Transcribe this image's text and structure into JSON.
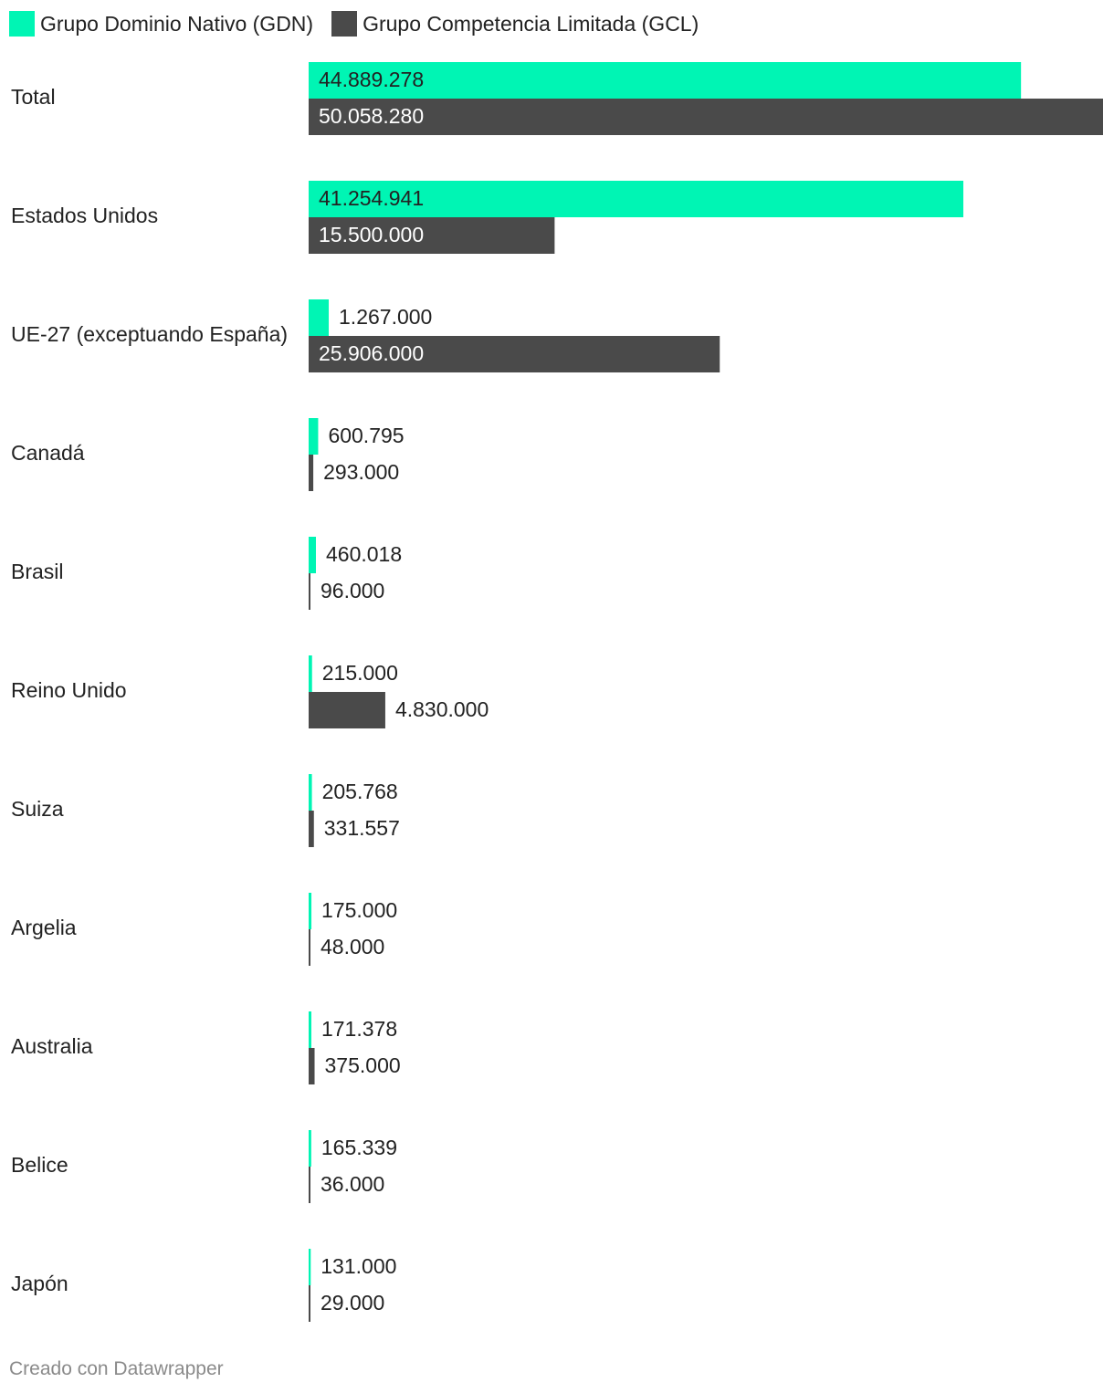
{
  "colors": {
    "gdn": "#00f5b4",
    "gcl": "#4a4a4a",
    "text": "#222222",
    "inside_text_on_dark": "#ffffff"
  },
  "legend": [
    {
      "label": "Grupo Dominio Nativo (GDN)",
      "color": "#00f5b4"
    },
    {
      "label": "Grupo Competencia Limitada (GCL)",
      "color": "#4a4a4a"
    }
  ],
  "chart_data": {
    "type": "bar",
    "orientation": "horizontal",
    "categories": [
      "Total",
      "Estados Unidos",
      "UE-27 (exceptuando España)",
      "Canadá",
      "Brasil",
      "Reino Unido",
      "Suiza",
      "Argelia",
      "Australia",
      "Belice",
      "Japón"
    ],
    "series": [
      {
        "name": "Grupo Dominio Nativo (GDN)",
        "values": [
          44889278,
          41254941,
          1267000,
          600795,
          460018,
          215000,
          205768,
          175000,
          171378,
          165339,
          131000
        ],
        "labels": [
          "44.889.278",
          "41.254.941",
          "1.267.000",
          "600.795",
          "460.018",
          "215.000",
          "205.768",
          "175.000",
          "171.378",
          "165.339",
          "131.000"
        ]
      },
      {
        "name": "Grupo Competencia Limitada (GCL)",
        "values": [
          50058280,
          15500000,
          25906000,
          293000,
          96000,
          4830000,
          331557,
          48000,
          375000,
          36000,
          29000
        ],
        "labels": [
          "50.058.280",
          "15.500.000",
          "25.906.000",
          "293.000",
          "96.000",
          "4.830.000",
          "331.557",
          "48.000",
          "375.000",
          "36.000",
          "29.000"
        ]
      }
    ],
    "xlim": [
      0,
      50058280
    ],
    "grid": false,
    "legend_position": "top-left"
  },
  "footer": {
    "credit": "Creado con Datawrapper"
  }
}
